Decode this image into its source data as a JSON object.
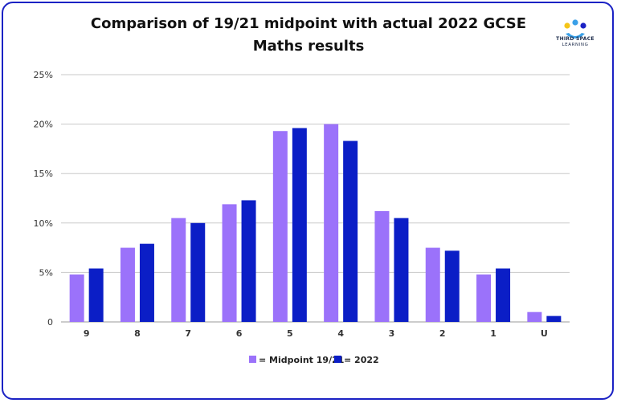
{
  "logo": {
    "line1": "THIRD SPACE",
    "line2": "LEARNING",
    "colors": [
      "#f5c518",
      "#3aa0e8",
      "#1b22c4"
    ]
  },
  "chart_data": {
    "type": "bar",
    "title_line1": "Comparison of 19/21 midpoint with actual 2022 GCSE",
    "title_line2": "Maths results",
    "categories": [
      "9",
      "8",
      "7",
      "6",
      "5",
      "4",
      "3",
      "2",
      "1",
      "U"
    ],
    "series": [
      {
        "name": "= Midpoint 19/21",
        "color": "#9b72fa",
        "values": [
          4.8,
          7.5,
          10.5,
          11.9,
          19.3,
          20.0,
          11.2,
          7.5,
          4.8,
          1.0
        ]
      },
      {
        "name": "= 2022",
        "color": "#0b1ec6",
        "values": [
          5.4,
          7.9,
          10.0,
          12.3,
          19.6,
          18.3,
          10.5,
          7.2,
          5.4,
          0.6
        ]
      }
    ],
    "ylim": [
      0,
      25
    ],
    "yticks": [
      "0",
      "5%",
      "10%",
      "15%",
      "20%",
      "25%"
    ],
    "ytick_values": [
      0,
      5,
      10,
      15,
      20,
      25
    ],
    "grid": true,
    "legend_position": "bottom-center",
    "xlabel": "",
    "ylabel": ""
  }
}
